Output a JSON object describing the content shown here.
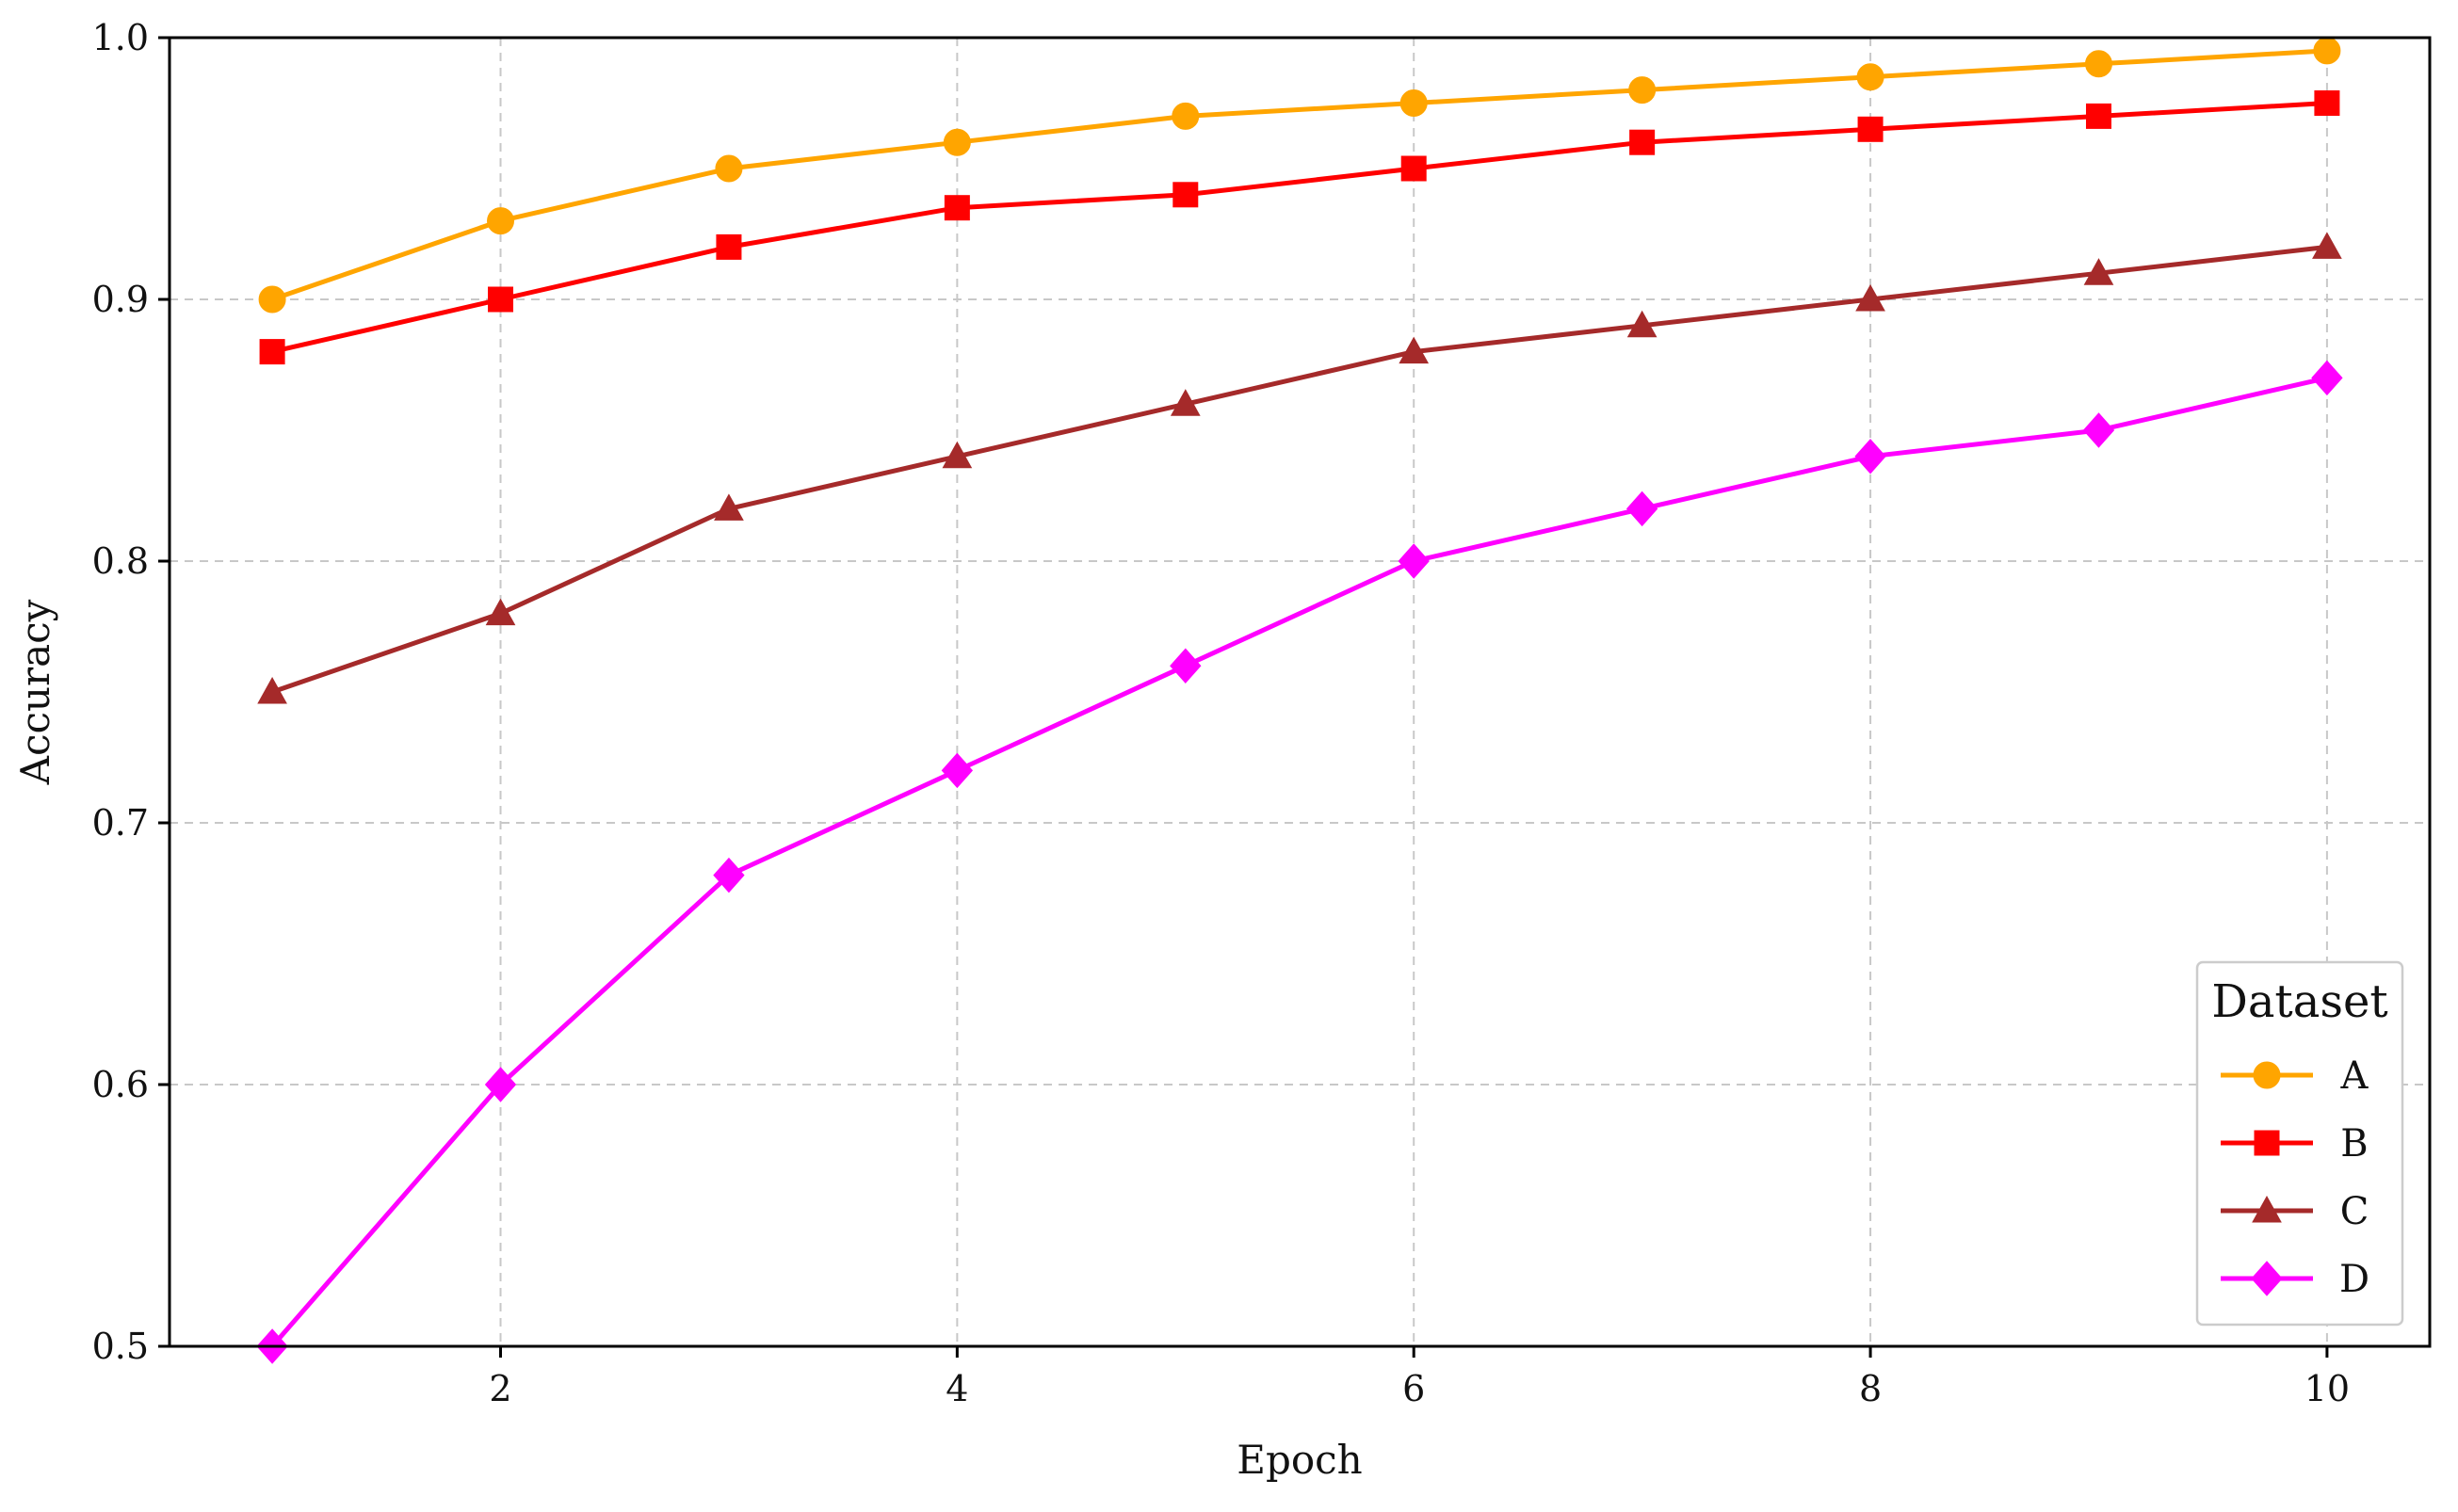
{
  "chart_data": {
    "type": "line",
    "title": "",
    "xlabel": "Epoch",
    "ylabel": "Accuracy",
    "xlim": [
      0.55,
      10.45
    ],
    "ylim": [
      0.5,
      1.0
    ],
    "x_ticks": [
      2,
      4,
      6,
      8,
      10
    ],
    "y_ticks": [
      0.5,
      0.6,
      0.7,
      0.8,
      0.9,
      1.0
    ],
    "x_tick_labels": [
      "2",
      "4",
      "6",
      "8",
      "10"
    ],
    "y_tick_labels": [
      "0.5",
      "0.6",
      "0.7",
      "0.8",
      "0.9",
      "1.0"
    ],
    "grid": true,
    "legend": {
      "title": "Dataset",
      "placement": "lower-right"
    },
    "x": [
      1,
      2,
      3,
      4,
      5,
      6,
      7,
      8,
      9,
      10
    ],
    "series": [
      {
        "name": "A",
        "color": "#FFA500",
        "marker": "circle",
        "values": [
          0.9,
          0.93,
          0.95,
          0.96,
          0.97,
          0.975,
          0.98,
          0.985,
          0.99,
          0.995
        ]
      },
      {
        "name": "B",
        "color": "#FF0000",
        "marker": "square",
        "values": [
          0.88,
          0.9,
          0.92,
          0.935,
          0.94,
          0.95,
          0.96,
          0.965,
          0.97,
          0.975
        ]
      },
      {
        "name": "C",
        "color": "#A52A2A",
        "marker": "triangle",
        "values": [
          0.75,
          0.78,
          0.82,
          0.84,
          0.86,
          0.88,
          0.89,
          0.9,
          0.91,
          0.92
        ]
      },
      {
        "name": "D",
        "color": "#FF00FF",
        "marker": "diamond",
        "values": [
          0.5,
          0.6,
          0.68,
          0.72,
          0.76,
          0.8,
          0.82,
          0.84,
          0.85,
          0.87
        ]
      }
    ]
  }
}
